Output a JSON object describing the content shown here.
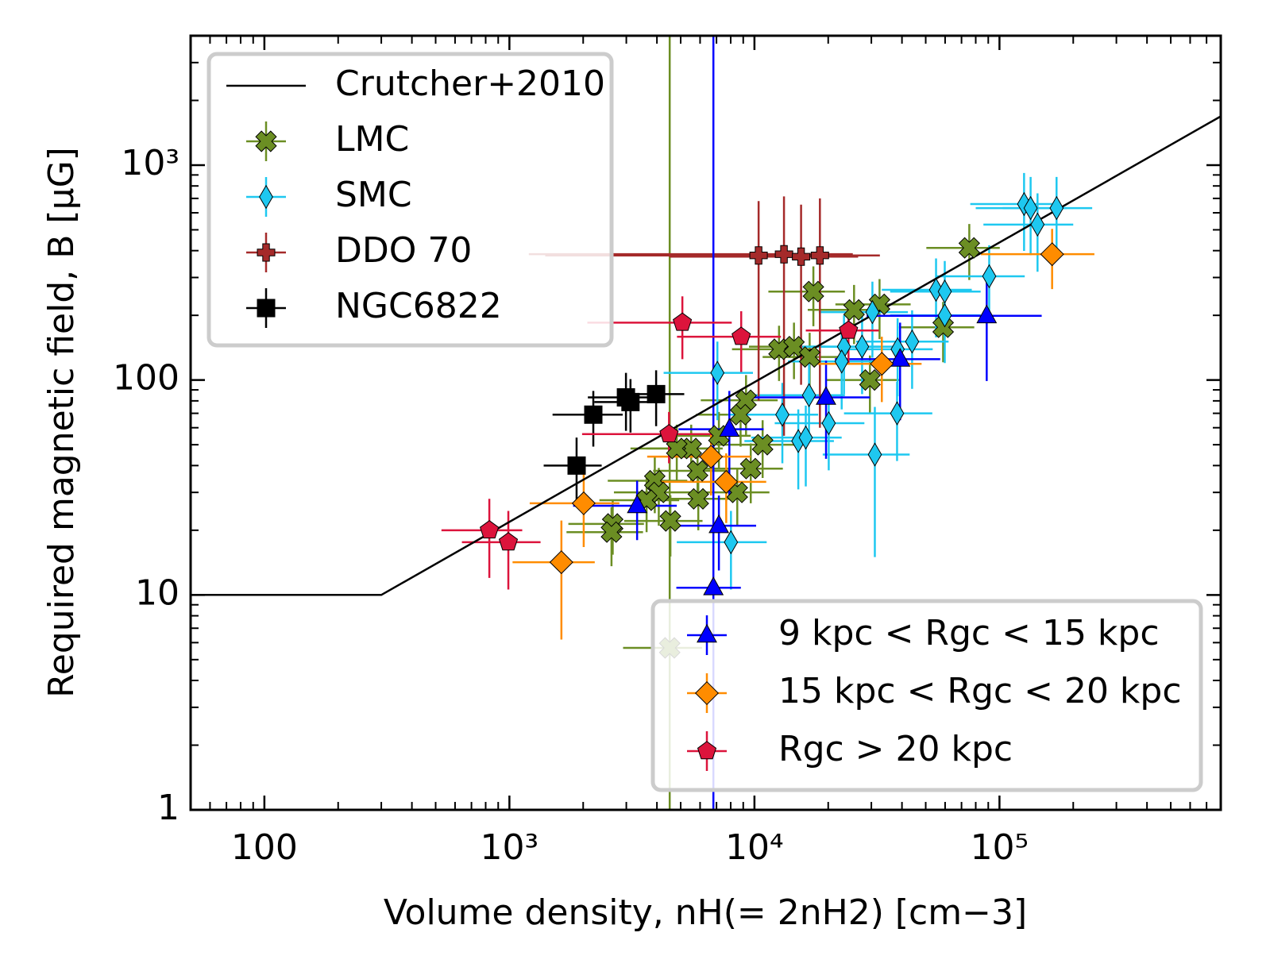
{
  "chart_data": {
    "type": "scatter",
    "xlabel": "Volume density, nH(= 2nH2) [cm−3]",
    "ylabel": "Required magnetic field, B [μG]",
    "xscale": "log",
    "yscale": "log",
    "xlim": [
      50,
      800000
    ],
    "ylim": [
      1,
      4000
    ],
    "xticks": [
      100,
      {
        "value": 1000,
        "label": "10³"
      },
      {
        "value": 10000,
        "label": "10⁴"
      },
      {
        "value": 100000,
        "label": "10⁵"
      }
    ],
    "yticks": [
      1,
      10,
      100,
      {
        "value": 1000,
        "label": "10³"
      }
    ],
    "series": [
      {
        "name": "Crutcher+2010",
        "mode": "line",
        "color": "#000000",
        "legend": "upper left",
        "x": [
          50,
          300,
          800000
        ],
        "y": [
          10,
          10,
          1687
        ]
      },
      {
        "name": "LMC",
        "marker": "X",
        "color": "#6b8e23",
        "legend": "upper left",
        "x": [
          75300,
          17400,
          25500,
          32400,
          58900,
          12600,
          14500,
          16800,
          9240,
          8780,
          10800,
          7160,
          5520,
          4820,
          5860,
          3920,
          4070,
          3630,
          5900,
          2640,
          2610,
          4540,
          8510,
          9660,
          4510,
          29600
        ],
        "y": [
          412,
          258,
          212,
          225,
          176,
          139,
          143,
          128,
          80.5,
          69,
          50,
          55,
          48,
          48,
          37.8,
          34,
          30,
          27.6,
          28,
          21.4,
          19.6,
          22.1,
          30,
          38.7,
          5.67,
          100
        ],
        "xerr": [
          25000,
          6000,
          9000,
          11000,
          20000,
          4500,
          5000,
          6000,
          3200,
          3000,
          3800,
          2500,
          1900,
          1700,
          2000,
          1400,
          1400,
          1300,
          2000,
          900,
          900,
          1600,
          3000,
          3400,
          1600,
          10000
        ],
        "yerr": [
          120,
          80,
          65,
          70,
          55,
          40,
          42,
          38,
          25,
          20,
          15,
          16,
          14,
          14,
          11,
          10,
          9,
          8,
          8,
          6,
          6,
          7,
          9,
          12,
          4000,
          30
        ]
      },
      {
        "name": "SMC",
        "marker": "thin_diamond",
        "color": "#1ec8f0",
        "legend": "upper left",
        "x": [
          126000,
          134000,
          143000,
          171000,
          90800,
          55100,
          59800,
          59800,
          44000,
          38400,
          30300,
          27500,
          23200,
          16700,
          13000,
          15100,
          16200,
          20100,
          38200,
          31000,
          7060,
          8020,
          22700
        ],
        "y": [
          659,
          631,
          529,
          631,
          304,
          263,
          258,
          200,
          151,
          139,
          207,
          143,
          143,
          85,
          69,
          52,
          54,
          63,
          70,
          45,
          108,
          17.6,
          122
        ],
        "xerr": [
          50000,
          54000,
          57000,
          68000,
          36000,
          22000,
          24000,
          24000,
          18000,
          15000,
          12000,
          11000,
          9300,
          6700,
          5200,
          6000,
          6500,
          8000,
          15000,
          12000,
          2800,
          3200,
          9000
        ],
        "yerr": [
          260,
          250,
          210,
          250,
          120,
          105,
          100,
          80,
          60,
          55,
          80,
          57,
          57,
          34,
          28,
          21,
          22,
          25,
          28,
          30,
          43,
          7,
          49
        ]
      },
      {
        "name": "DDO 70",
        "marker": "P",
        "color": "#a52a2a",
        "legend": "upper left",
        "x": [
          10400,
          13200,
          15500,
          18500
        ],
        "y": [
          380,
          385,
          375,
          380
        ],
        "xerr": [
          9000,
          12000,
          11000,
          14000
        ],
        "yerr": [
          300,
          330,
          280,
          320
        ]
      },
      {
        "name": "NGC6822",
        "marker": "s",
        "color": "#000000",
        "legend": "upper left",
        "x": [
          1880,
          2200,
          2990,
          3120,
          3970
        ],
        "y": [
          40,
          69,
          83,
          79,
          86
        ],
        "xerr": [
          500,
          700,
          900,
          900,
          1200
        ],
        "yerr": [
          14,
          20,
          25,
          22,
          25
        ]
      },
      {
        "name": "9 kpc < Rgc < 15 kpc",
        "marker": "^",
        "color": "#0000ff",
        "legend": "lower right",
        "x": [
          3320,
          7900,
          7160,
          6800,
          19600,
          39300,
          88700
        ],
        "y": [
          26,
          59,
          21,
          10.8,
          83,
          125,
          199
        ],
        "xerr": [
          1500,
          3000,
          3000,
          2000,
          10000,
          18000,
          60000
        ],
        "yerr": [
          8,
          30,
          8,
          4000,
          40,
          60,
          100
        ]
      },
      {
        "name": "15 kpc < Rgc < 20 kpc",
        "marker": "D",
        "color": "#ff8c00",
        "legend": "lower right",
        "x": [
          1630,
          2010,
          6650,
          7670,
          33100,
          164000
        ],
        "y": [
          14.2,
          26.7,
          44,
          33.6,
          119,
          385
        ],
        "xerr": [
          600,
          800,
          3000,
          3500,
          15000,
          80000
        ],
        "yerr": [
          8,
          10,
          15,
          12,
          40,
          120
        ]
      },
      {
        "name": "Rgc > 20 kpc",
        "marker": "p",
        "color": "#dc143c",
        "legend": "lower right",
        "x": [
          828,
          990,
          5080,
          8830,
          4480,
          24200
        ],
        "y": [
          20,
          17.6,
          185,
          159,
          56,
          170
        ],
        "xerr": [
          300,
          350,
          3000,
          4000,
          2500,
          8000
        ],
        "yerr": [
          8,
          7,
          60,
          50,
          15,
          50
        ]
      }
    ]
  }
}
